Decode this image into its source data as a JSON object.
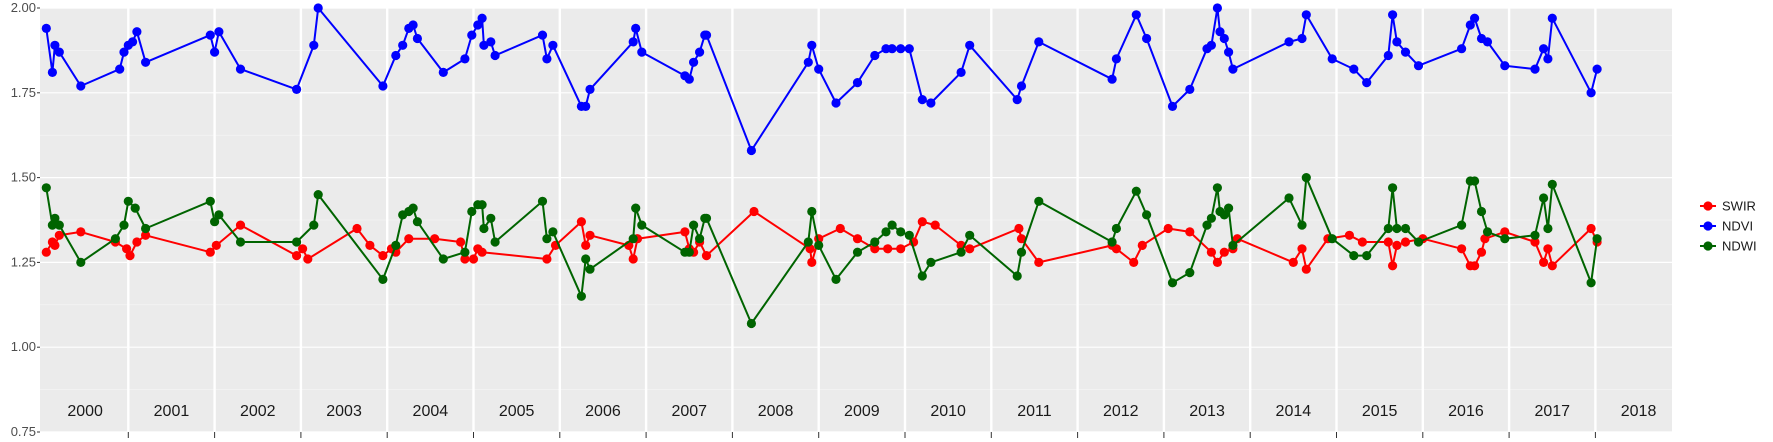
{
  "chart_data": {
    "type": "line",
    "x_unit": "year",
    "ylim": [
      0.75,
      2.0
    ],
    "y_ticks": [
      "0.75",
      "1.00",
      "1.25",
      "1.50",
      "1.75",
      "2.00"
    ],
    "year_labels": [
      "2000",
      "2001",
      "2002",
      "2003",
      "2004",
      "2005",
      "2006",
      "2007",
      "2008",
      "2009",
      "2010",
      "2011",
      "2012",
      "2013",
      "2014",
      "2015",
      "2016",
      "2017",
      "2018"
    ],
    "grid": true,
    "legend_position": "right",
    "series": [
      {
        "name": "SWIR",
        "color": "#ff0000",
        "points": [
          [
            2000.05,
            1.28
          ],
          [
            2000.12,
            1.31
          ],
          [
            2000.15,
            1.3
          ],
          [
            2000.2,
            1.33
          ],
          [
            2000.45,
            1.34
          ],
          [
            2000.85,
            1.31
          ],
          [
            2000.98,
            1.29
          ],
          [
            2001.02,
            1.27
          ],
          [
            2001.1,
            1.31
          ],
          [
            2001.2,
            1.33
          ],
          [
            2001.95,
            1.28
          ],
          [
            2002.02,
            1.3
          ],
          [
            2002.3,
            1.36
          ],
          [
            2002.95,
            1.27
          ],
          [
            2003.02,
            1.29
          ],
          [
            2003.08,
            1.26
          ],
          [
            2003.65,
            1.35
          ],
          [
            2003.8,
            1.3
          ],
          [
            2003.95,
            1.27
          ],
          [
            2004.05,
            1.29
          ],
          [
            2004.1,
            1.28
          ],
          [
            2004.25,
            1.32
          ],
          [
            2004.55,
            1.32
          ],
          [
            2004.85,
            1.31
          ],
          [
            2004.9,
            1.26
          ],
          [
            2005.0,
            1.26
          ],
          [
            2005.05,
            1.29
          ],
          [
            2005.1,
            1.28
          ],
          [
            2005.85,
            1.26
          ],
          [
            2005.95,
            1.3
          ],
          [
            2006.25,
            1.37
          ],
          [
            2006.3,
            1.3
          ],
          [
            2006.35,
            1.33
          ],
          [
            2006.8,
            1.3
          ],
          [
            2006.85,
            1.26
          ],
          [
            2006.9,
            1.32
          ],
          [
            2007.45,
            1.34
          ],
          [
            2007.5,
            1.29
          ],
          [
            2007.55,
            1.28
          ],
          [
            2007.62,
            1.31
          ],
          [
            2007.7,
            1.27
          ],
          [
            2008.25,
            1.4
          ],
          [
            2008.9,
            1.29
          ],
          [
            2008.92,
            1.25
          ],
          [
            2009.0,
            1.32
          ],
          [
            2009.25,
            1.35
          ],
          [
            2009.45,
            1.32
          ],
          [
            2009.65,
            1.29
          ],
          [
            2009.8,
            1.29
          ],
          [
            2009.95,
            1.29
          ],
          [
            2010.1,
            1.31
          ],
          [
            2010.2,
            1.37
          ],
          [
            2010.35,
            1.36
          ],
          [
            2010.65,
            1.3
          ],
          [
            2010.75,
            1.29
          ],
          [
            2011.32,
            1.35
          ],
          [
            2011.35,
            1.32
          ],
          [
            2011.55,
            1.25
          ],
          [
            2012.4,
            1.3
          ],
          [
            2012.45,
            1.29
          ],
          [
            2012.65,
            1.25
          ],
          [
            2012.75,
            1.3
          ],
          [
            2013.05,
            1.35
          ],
          [
            2013.3,
            1.34
          ],
          [
            2013.55,
            1.28
          ],
          [
            2013.62,
            1.25
          ],
          [
            2013.7,
            1.28
          ],
          [
            2013.8,
            1.29
          ],
          [
            2013.85,
            1.32
          ],
          [
            2014.5,
            1.25
          ],
          [
            2014.6,
            1.29
          ],
          [
            2014.65,
            1.23
          ],
          [
            2014.9,
            1.32
          ],
          [
            2015.15,
            1.33
          ],
          [
            2015.3,
            1.31
          ],
          [
            2015.6,
            1.31
          ],
          [
            2015.65,
            1.24
          ],
          [
            2015.7,
            1.3
          ],
          [
            2015.8,
            1.31
          ],
          [
            2016.0,
            1.32
          ],
          [
            2016.45,
            1.29
          ],
          [
            2016.55,
            1.24
          ],
          [
            2016.6,
            1.24
          ],
          [
            2016.68,
            1.28
          ],
          [
            2016.72,
            1.32
          ],
          [
            2016.95,
            1.34
          ],
          [
            2017.3,
            1.31
          ],
          [
            2017.4,
            1.25
          ],
          [
            2017.45,
            1.29
          ],
          [
            2017.5,
            1.24
          ],
          [
            2017.95,
            1.35
          ],
          [
            2018.02,
            1.31
          ]
        ]
      },
      {
        "name": "NDVI",
        "color": "#0000ff",
        "points": [
          [
            2000.05,
            1.94
          ],
          [
            2000.12,
            1.81
          ],
          [
            2000.15,
            1.89
          ],
          [
            2000.2,
            1.87
          ],
          [
            2000.45,
            1.77
          ],
          [
            2000.9,
            1.82
          ],
          [
            2000.95,
            1.87
          ],
          [
            2001.0,
            1.89
          ],
          [
            2001.05,
            1.9
          ],
          [
            2001.1,
            1.93
          ],
          [
            2001.2,
            1.84
          ],
          [
            2001.95,
            1.92
          ],
          [
            2002.0,
            1.87
          ],
          [
            2002.05,
            1.93
          ],
          [
            2002.3,
            1.82
          ],
          [
            2002.95,
            1.76
          ],
          [
            2003.15,
            1.89
          ],
          [
            2003.2,
            2.0
          ],
          [
            2003.95,
            1.77
          ],
          [
            2004.1,
            1.86
          ],
          [
            2004.18,
            1.89
          ],
          [
            2004.25,
            1.94
          ],
          [
            2004.3,
            1.95
          ],
          [
            2004.35,
            1.91
          ],
          [
            2004.65,
            1.81
          ],
          [
            2004.9,
            1.85
          ],
          [
            2004.98,
            1.92
          ],
          [
            2005.05,
            1.95
          ],
          [
            2005.1,
            1.97
          ],
          [
            2005.12,
            1.89
          ],
          [
            2005.2,
            1.9
          ],
          [
            2005.25,
            1.86
          ],
          [
            2005.8,
            1.92
          ],
          [
            2005.85,
            1.85
          ],
          [
            2005.92,
            1.89
          ],
          [
            2006.25,
            1.71
          ],
          [
            2006.3,
            1.71
          ],
          [
            2006.35,
            1.76
          ],
          [
            2006.85,
            1.9
          ],
          [
            2006.88,
            1.94
          ],
          [
            2006.95,
            1.87
          ],
          [
            2007.45,
            1.8
          ],
          [
            2007.5,
            1.79
          ],
          [
            2007.55,
            1.84
          ],
          [
            2007.62,
            1.87
          ],
          [
            2007.68,
            1.92
          ],
          [
            2007.7,
            1.92
          ],
          [
            2008.22,
            1.58
          ],
          [
            2008.88,
            1.84
          ],
          [
            2008.92,
            1.89
          ],
          [
            2009.0,
            1.82
          ],
          [
            2009.2,
            1.72
          ],
          [
            2009.45,
            1.78
          ],
          [
            2009.65,
            1.86
          ],
          [
            2009.78,
            1.88
          ],
          [
            2009.85,
            1.88
          ],
          [
            2009.95,
            1.88
          ],
          [
            2010.05,
            1.88
          ],
          [
            2010.2,
            1.73
          ],
          [
            2010.3,
            1.72
          ],
          [
            2010.65,
            1.81
          ],
          [
            2010.75,
            1.89
          ],
          [
            2011.3,
            1.73
          ],
          [
            2011.35,
            1.77
          ],
          [
            2011.55,
            1.9
          ],
          [
            2012.4,
            1.79
          ],
          [
            2012.45,
            1.85
          ],
          [
            2012.68,
            1.98
          ],
          [
            2012.8,
            1.91
          ],
          [
            2013.1,
            1.71
          ],
          [
            2013.3,
            1.76
          ],
          [
            2013.5,
            1.88
          ],
          [
            2013.55,
            1.89
          ],
          [
            2013.62,
            2.0
          ],
          [
            2013.65,
            1.93
          ],
          [
            2013.7,
            1.91
          ],
          [
            2013.75,
            1.87
          ],
          [
            2013.8,
            1.82
          ],
          [
            2014.45,
            1.9
          ],
          [
            2014.6,
            1.91
          ],
          [
            2014.65,
            1.98
          ],
          [
            2014.95,
            1.85
          ],
          [
            2015.2,
            1.82
          ],
          [
            2015.35,
            1.78
          ],
          [
            2015.6,
            1.86
          ],
          [
            2015.65,
            1.98
          ],
          [
            2015.7,
            1.9
          ],
          [
            2015.8,
            1.87
          ],
          [
            2015.95,
            1.83
          ],
          [
            2016.45,
            1.88
          ],
          [
            2016.55,
            1.95
          ],
          [
            2016.6,
            1.97
          ],
          [
            2016.68,
            1.91
          ],
          [
            2016.75,
            1.9
          ],
          [
            2016.95,
            1.83
          ],
          [
            2017.3,
            1.82
          ],
          [
            2017.4,
            1.88
          ],
          [
            2017.45,
            1.85
          ],
          [
            2017.5,
            1.97
          ],
          [
            2017.95,
            1.75
          ],
          [
            2018.02,
            1.82
          ]
        ]
      },
      {
        "name": "NDWI",
        "color": "#006400",
        "points": [
          [
            2000.05,
            1.47
          ],
          [
            2000.12,
            1.36
          ],
          [
            2000.15,
            1.38
          ],
          [
            2000.2,
            1.36
          ],
          [
            2000.45,
            1.25
          ],
          [
            2000.85,
            1.32
          ],
          [
            2000.95,
            1.36
          ],
          [
            2001.0,
            1.43
          ],
          [
            2001.08,
            1.41
          ],
          [
            2001.2,
            1.35
          ],
          [
            2001.95,
            1.43
          ],
          [
            2002.0,
            1.37
          ],
          [
            2002.05,
            1.39
          ],
          [
            2002.3,
            1.31
          ],
          [
            2002.95,
            1.31
          ],
          [
            2003.15,
            1.36
          ],
          [
            2003.2,
            1.45
          ],
          [
            2003.95,
            1.2
          ],
          [
            2004.1,
            1.3
          ],
          [
            2004.18,
            1.39
          ],
          [
            2004.25,
            1.4
          ],
          [
            2004.3,
            1.41
          ],
          [
            2004.35,
            1.37
          ],
          [
            2004.65,
            1.26
          ],
          [
            2004.9,
            1.28
          ],
          [
            2004.98,
            1.4
          ],
          [
            2005.05,
            1.42
          ],
          [
            2005.1,
            1.42
          ],
          [
            2005.12,
            1.35
          ],
          [
            2005.2,
            1.38
          ],
          [
            2005.25,
            1.31
          ],
          [
            2005.8,
            1.43
          ],
          [
            2005.85,
            1.32
          ],
          [
            2005.92,
            1.34
          ],
          [
            2006.25,
            1.15
          ],
          [
            2006.3,
            1.26
          ],
          [
            2006.35,
            1.23
          ],
          [
            2006.85,
            1.32
          ],
          [
            2006.88,
            1.41
          ],
          [
            2006.95,
            1.36
          ],
          [
            2007.45,
            1.28
          ],
          [
            2007.5,
            1.28
          ],
          [
            2007.55,
            1.36
          ],
          [
            2007.62,
            1.32
          ],
          [
            2007.68,
            1.38
          ],
          [
            2007.7,
            1.38
          ],
          [
            2008.22,
            1.07
          ],
          [
            2008.88,
            1.31
          ],
          [
            2008.92,
            1.4
          ],
          [
            2009.0,
            1.3
          ],
          [
            2009.2,
            1.2
          ],
          [
            2009.45,
            1.28
          ],
          [
            2009.65,
            1.31
          ],
          [
            2009.78,
            1.34
          ],
          [
            2009.85,
            1.36
          ],
          [
            2009.95,
            1.34
          ],
          [
            2010.05,
            1.33
          ],
          [
            2010.2,
            1.21
          ],
          [
            2010.3,
            1.25
          ],
          [
            2010.65,
            1.28
          ],
          [
            2010.75,
            1.33
          ],
          [
            2011.3,
            1.21
          ],
          [
            2011.35,
            1.28
          ],
          [
            2011.55,
            1.43
          ],
          [
            2012.4,
            1.31
          ],
          [
            2012.45,
            1.35
          ],
          [
            2012.68,
            1.46
          ],
          [
            2012.8,
            1.39
          ],
          [
            2013.1,
            1.19
          ],
          [
            2013.3,
            1.22
          ],
          [
            2013.5,
            1.36
          ],
          [
            2013.55,
            1.38
          ],
          [
            2013.62,
            1.47
          ],
          [
            2013.65,
            1.4
          ],
          [
            2013.7,
            1.39
          ],
          [
            2013.75,
            1.41
          ],
          [
            2013.8,
            1.3
          ],
          [
            2014.45,
            1.44
          ],
          [
            2014.6,
            1.36
          ],
          [
            2014.65,
            1.5
          ],
          [
            2014.95,
            1.32
          ],
          [
            2015.2,
            1.27
          ],
          [
            2015.35,
            1.27
          ],
          [
            2015.6,
            1.35
          ],
          [
            2015.65,
            1.47
          ],
          [
            2015.7,
            1.35
          ],
          [
            2015.8,
            1.35
          ],
          [
            2015.95,
            1.31
          ],
          [
            2016.45,
            1.36
          ],
          [
            2016.55,
            1.49
          ],
          [
            2016.6,
            1.49
          ],
          [
            2016.68,
            1.4
          ],
          [
            2016.75,
            1.34
          ],
          [
            2016.95,
            1.32
          ],
          [
            2017.3,
            1.33
          ],
          [
            2017.4,
            1.44
          ],
          [
            2017.45,
            1.35
          ],
          [
            2017.5,
            1.48
          ],
          [
            2017.95,
            1.19
          ],
          [
            2018.02,
            1.32
          ]
        ]
      }
    ]
  }
}
